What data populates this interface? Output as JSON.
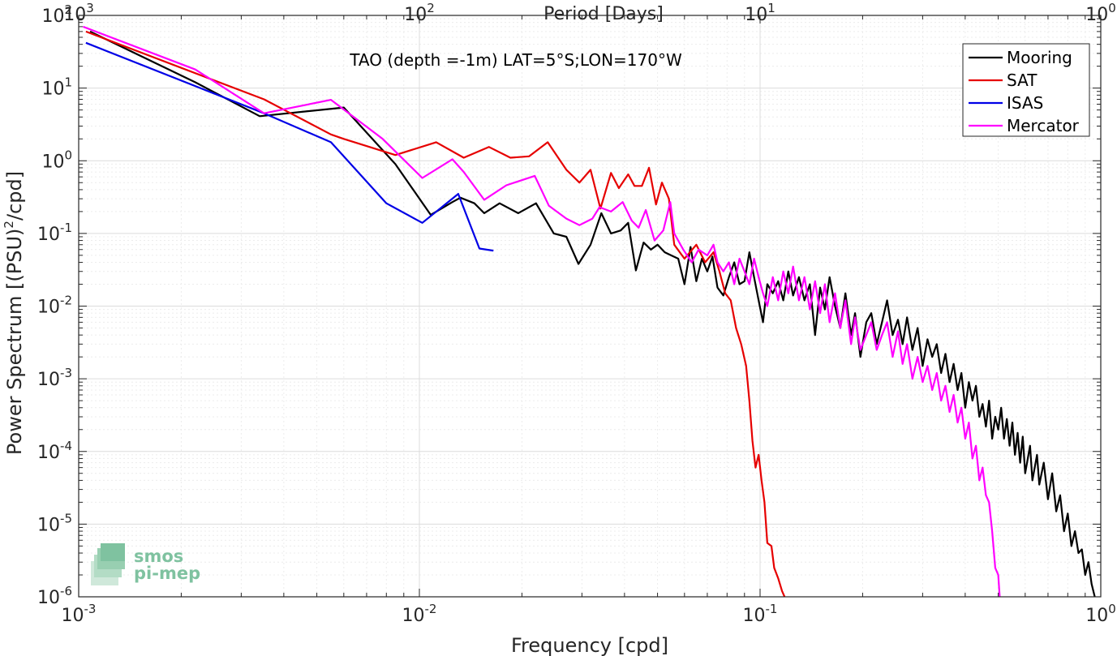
{
  "chart_data": {
    "type": "line",
    "title": "TAO (depth =-1m) LAT=5°S;LON=170°W",
    "xlabel": "Frequency [cpd]",
    "ylabel_main": "Power Spectrum [(PSU)",
    "ylabel_sup": "2",
    "ylabel_tail": "/cpd]",
    "x2label": "Period [Days]",
    "xscale": "log",
    "yscale": "log",
    "xlim": [
      0.001,
      1
    ],
    "ylim": [
      1e-06,
      100
    ],
    "grid": true,
    "legend_position": "top-right",
    "x_ticks": [
      {
        "value": 0.001,
        "base": "10",
        "exp": "-3"
      },
      {
        "value": 0.01,
        "base": "10",
        "exp": "-2"
      },
      {
        "value": 0.1,
        "base": "10",
        "exp": "-1"
      },
      {
        "value": 1,
        "base": "10",
        "exp": "0"
      }
    ],
    "y_ticks": [
      {
        "value": 1e-06,
        "base": "10",
        "exp": "-6"
      },
      {
        "value": 1e-05,
        "base": "10",
        "exp": "-5"
      },
      {
        "value": 0.0001,
        "base": "10",
        "exp": "-4"
      },
      {
        "value": 0.001,
        "base": "10",
        "exp": "-3"
      },
      {
        "value": 0.01,
        "base": "10",
        "exp": "-2"
      },
      {
        "value": 0.1,
        "base": "10",
        "exp": "-1"
      },
      {
        "value": 1,
        "base": "10",
        "exp": "0"
      },
      {
        "value": 10,
        "base": "10",
        "exp": "1"
      },
      {
        "value": 100,
        "base": "10",
        "exp": "2"
      }
    ],
    "x2_ticks": [
      {
        "value": 0.001,
        "base": "10",
        "exp": "3"
      },
      {
        "value": 0.01,
        "base": "10",
        "exp": "2"
      },
      {
        "value": 0.1,
        "base": "10",
        "exp": "1"
      },
      {
        "value": 1,
        "base": "10",
        "exp": "0"
      }
    ],
    "series": [
      {
        "name": "Mooring",
        "color": "#000000",
        "points": [
          [
            0.00108,
            60
          ],
          [
            0.0022,
            12
          ],
          [
            0.0034,
            4.1
          ],
          [
            0.006,
            5.4
          ],
          [
            0.0085,
            0.9
          ],
          [
            0.0108,
            0.18
          ],
          [
            0.0125,
            0.27
          ],
          [
            0.0132,
            0.31
          ],
          [
            0.0145,
            0.26
          ],
          [
            0.0155,
            0.19
          ],
          [
            0.0172,
            0.26
          ],
          [
            0.0195,
            0.19
          ],
          [
            0.022,
            0.26
          ],
          [
            0.0248,
            0.1
          ],
          [
            0.027,
            0.09
          ],
          [
            0.0293,
            0.038
          ],
          [
            0.0318,
            0.07
          ],
          [
            0.0342,
            0.19
          ],
          [
            0.0365,
            0.1
          ],
          [
            0.039,
            0.11
          ],
          [
            0.041,
            0.14
          ],
          [
            0.0432,
            0.031
          ],
          [
            0.0455,
            0.075
          ],
          [
            0.0478,
            0.06
          ],
          [
            0.05,
            0.07
          ],
          [
            0.0525,
            0.055
          ],
          [
            0.0548,
            0.05
          ],
          [
            0.0575,
            0.045
          ],
          [
            0.06,
            0.02
          ],
          [
            0.0625,
            0.065
          ],
          [
            0.065,
            0.022
          ],
          [
            0.0675,
            0.045
          ],
          [
            0.07,
            0.03
          ],
          [
            0.0725,
            0.048
          ],
          [
            0.075,
            0.018
          ],
          [
            0.078,
            0.014
          ],
          [
            0.081,
            0.025
          ],
          [
            0.084,
            0.04
          ],
          [
            0.087,
            0.02
          ],
          [
            0.09,
            0.022
          ],
          [
            0.093,
            0.055
          ],
          [
            0.096,
            0.025
          ],
          [
            0.099,
            0.012
          ],
          [
            0.102,
            0.006
          ],
          [
            0.105,
            0.02
          ],
          [
            0.109,
            0.015
          ],
          [
            0.113,
            0.022
          ],
          [
            0.117,
            0.012
          ],
          [
            0.121,
            0.03
          ],
          [
            0.125,
            0.014
          ],
          [
            0.13,
            0.025
          ],
          [
            0.135,
            0.012
          ],
          [
            0.14,
            0.02
          ],
          [
            0.145,
            0.004
          ],
          [
            0.15,
            0.018
          ],
          [
            0.155,
            0.009
          ],
          [
            0.16,
            0.025
          ],
          [
            0.166,
            0.01
          ],
          [
            0.172,
            0.005
          ],
          [
            0.178,
            0.015
          ],
          [
            0.185,
            0.004
          ],
          [
            0.19,
            0.008
          ],
          [
            0.197,
            0.002
          ],
          [
            0.205,
            0.006
          ],
          [
            0.212,
            0.008
          ],
          [
            0.22,
            0.003
          ],
          [
            0.228,
            0.006
          ],
          [
            0.236,
            0.012
          ],
          [
            0.245,
            0.004
          ],
          [
            0.254,
            0.0065
          ],
          [
            0.262,
            0.003
          ],
          [
            0.27,
            0.007
          ],
          [
            0.28,
            0.0025
          ],
          [
            0.29,
            0.005
          ],
          [
            0.3,
            0.0015
          ],
          [
            0.31,
            0.0035
          ],
          [
            0.32,
            0.002
          ],
          [
            0.33,
            0.003
          ],
          [
            0.34,
            0.0012
          ],
          [
            0.35,
            0.0022
          ],
          [
            0.36,
            0.0009
          ],
          [
            0.37,
            0.0016
          ],
          [
            0.38,
            0.0007
          ],
          [
            0.39,
            0.0012
          ],
          [
            0.4,
            0.0004
          ],
          [
            0.41,
            0.0009
          ],
          [
            0.42,
            0.0005
          ],
          [
            0.43,
            0.0008
          ],
          [
            0.44,
            0.0003
          ],
          [
            0.45,
            0.00045
          ],
          [
            0.46,
            0.00022
          ],
          [
            0.47,
            0.0005
          ],
          [
            0.48,
            0.00015
          ],
          [
            0.49,
            0.0003
          ],
          [
            0.5,
            0.0002
          ],
          [
            0.51,
            0.0004
          ],
          [
            0.52,
            0.00015
          ],
          [
            0.53,
            0.00028
          ],
          [
            0.54,
            0.00012
          ],
          [
            0.55,
            0.00025
          ],
          [
            0.56,
            9e-05
          ],
          [
            0.57,
            0.00018
          ],
          [
            0.58,
            7e-05
          ],
          [
            0.59,
            0.00016
          ],
          [
            0.6,
            5e-05
          ],
          [
            0.62,
            0.00012
          ],
          [
            0.63,
            4e-05
          ],
          [
            0.65,
            9e-05
          ],
          [
            0.66,
            3.5e-05
          ],
          [
            0.68,
            7e-05
          ],
          [
            0.7,
            2.2e-05
          ],
          [
            0.72,
            5e-05
          ],
          [
            0.74,
            1.5e-05
          ],
          [
            0.76,
            2.5e-05
          ],
          [
            0.78,
            8e-06
          ],
          [
            0.8,
            1.4e-05
          ],
          [
            0.82,
            5e-06
          ],
          [
            0.84,
            8e-06
          ],
          [
            0.86,
            4e-06
          ],
          [
            0.88,
            4.5e-06
          ],
          [
            0.9,
            2e-06
          ],
          [
            0.92,
            3e-06
          ],
          [
            0.94,
            1.5e-06
          ],
          [
            0.96,
            1e-06
          ]
        ]
      },
      {
        "name": "SAT",
        "color": "#e60000",
        "points": [
          [
            0.00105,
            60
          ],
          [
            0.0035,
            7
          ],
          [
            0.0055,
            2.3
          ],
          [
            0.006,
            2
          ],
          [
            0.0085,
            1.2
          ],
          [
            0.0112,
            1.8
          ],
          [
            0.0135,
            1.1
          ],
          [
            0.016,
            1.55
          ],
          [
            0.0185,
            1.1
          ],
          [
            0.021,
            1.15
          ],
          [
            0.0238,
            1.8
          ],
          [
            0.027,
            0.75
          ],
          [
            0.0295,
            0.5
          ],
          [
            0.0318,
            0.75
          ],
          [
            0.034,
            0.22
          ],
          [
            0.0365,
            0.68
          ],
          [
            0.0385,
            0.42
          ],
          [
            0.041,
            0.65
          ],
          [
            0.0428,
            0.45
          ],
          [
            0.045,
            0.45
          ],
          [
            0.0472,
            0.8
          ],
          [
            0.0495,
            0.25
          ],
          [
            0.0515,
            0.5
          ],
          [
            0.054,
            0.3
          ],
          [
            0.056,
            0.07
          ],
          [
            0.06,
            0.045
          ],
          [
            0.065,
            0.07
          ],
          [
            0.069,
            0.04
          ],
          [
            0.073,
            0.055
          ],
          [
            0.076,
            0.03
          ],
          [
            0.079,
            0.015
          ],
          [
            0.082,
            0.012
          ],
          [
            0.085,
            0.005
          ],
          [
            0.088,
            0.003
          ],
          [
            0.091,
            0.0015
          ],
          [
            0.093,
            0.0005
          ],
          [
            0.095,
            0.00014
          ],
          [
            0.097,
            6e-05
          ],
          [
            0.099,
            9e-05
          ],
          [
            0.101,
            4e-05
          ],
          [
            0.103,
            2e-05
          ],
          [
            0.105,
            5.5e-06
          ],
          [
            0.108,
            5e-06
          ],
          [
            0.11,
            2.5e-06
          ],
          [
            0.113,
            1.8e-06
          ],
          [
            0.116,
            1.2e-06
          ],
          [
            0.118,
            1e-06
          ]
        ]
      },
      {
        "name": "ISAS",
        "color": "#0000e6",
        "points": [
          [
            0.00105,
            42
          ],
          [
            0.0035,
            4.5
          ],
          [
            0.0055,
            1.8
          ],
          [
            0.008,
            0.26
          ],
          [
            0.0102,
            0.14
          ],
          [
            0.0115,
            0.22
          ],
          [
            0.013,
            0.35
          ],
          [
            0.015,
            0.062
          ],
          [
            0.0165,
            0.058
          ]
        ]
      },
      {
        "name": "Mercator",
        "color": "#ff00ff",
        "points": [
          [
            0.00103,
            70
          ],
          [
            0.0022,
            18
          ],
          [
            0.0035,
            4.5
          ],
          [
            0.0055,
            6.9
          ],
          [
            0.0078,
            2
          ],
          [
            0.0102,
            0.58
          ],
          [
            0.0125,
            1.05
          ],
          [
            0.0135,
            0.7
          ],
          [
            0.0155,
            0.29
          ],
          [
            0.018,
            0.46
          ],
          [
            0.0218,
            0.62
          ],
          [
            0.024,
            0.24
          ],
          [
            0.027,
            0.16
          ],
          [
            0.0295,
            0.13
          ],
          [
            0.0322,
            0.16
          ],
          [
            0.0338,
            0.23
          ],
          [
            0.0365,
            0.2
          ],
          [
            0.0395,
            0.27
          ],
          [
            0.042,
            0.15
          ],
          [
            0.044,
            0.12
          ],
          [
            0.0462,
            0.21
          ],
          [
            0.049,
            0.08
          ],
          [
            0.052,
            0.11
          ],
          [
            0.0545,
            0.27
          ],
          [
            0.056,
            0.1
          ],
          [
            0.0595,
            0.06
          ],
          [
            0.063,
            0.04
          ],
          [
            0.066,
            0.06
          ],
          [
            0.07,
            0.05
          ],
          [
            0.073,
            0.07
          ],
          [
            0.075,
            0.04
          ],
          [
            0.078,
            0.03
          ],
          [
            0.081,
            0.04
          ],
          [
            0.084,
            0.02
          ],
          [
            0.087,
            0.045
          ],
          [
            0.09,
            0.03
          ],
          [
            0.093,
            0.02
          ],
          [
            0.096,
            0.045
          ],
          [
            0.099,
            0.025
          ],
          [
            0.102,
            0.015
          ],
          [
            0.105,
            0.01
          ],
          [
            0.109,
            0.025
          ],
          [
            0.113,
            0.012
          ],
          [
            0.117,
            0.03
          ],
          [
            0.121,
            0.015
          ],
          [
            0.125,
            0.035
          ],
          [
            0.13,
            0.012
          ],
          [
            0.135,
            0.025
          ],
          [
            0.14,
            0.009
          ],
          [
            0.145,
            0.022
          ],
          [
            0.15,
            0.008
          ],
          [
            0.155,
            0.02
          ],
          [
            0.16,
            0.006
          ],
          [
            0.166,
            0.015
          ],
          [
            0.172,
            0.005
          ],
          [
            0.178,
            0.012
          ],
          [
            0.185,
            0.003
          ],
          [
            0.19,
            0.007
          ],
          [
            0.197,
            0.0025
          ],
          [
            0.205,
            0.004
          ],
          [
            0.212,
            0.006
          ],
          [
            0.22,
            0.0025
          ],
          [
            0.228,
            0.004
          ],
          [
            0.236,
            0.006
          ],
          [
            0.245,
            0.002
          ],
          [
            0.254,
            0.0045
          ],
          [
            0.262,
            0.0016
          ],
          [
            0.27,
            0.003
          ],
          [
            0.28,
            0.001
          ],
          [
            0.29,
            0.002
          ],
          [
            0.3,
            0.0009
          ],
          [
            0.31,
            0.0015
          ],
          [
            0.32,
            0.0007
          ],
          [
            0.33,
            0.0012
          ],
          [
            0.34,
            0.0005
          ],
          [
            0.35,
            0.0008
          ],
          [
            0.36,
            0.00035
          ],
          [
            0.37,
            0.0006
          ],
          [
            0.38,
            0.00025
          ],
          [
            0.39,
            0.0004
          ],
          [
            0.4,
            0.00015
          ],
          [
            0.41,
            0.00025
          ],
          [
            0.42,
            8e-05
          ],
          [
            0.43,
            0.00012
          ],
          [
            0.44,
            4e-05
          ],
          [
            0.45,
            6e-05
          ],
          [
            0.46,
            2.5e-05
          ],
          [
            0.47,
            2e-05
          ],
          [
            0.48,
            8e-06
          ],
          [
            0.49,
            2.5e-06
          ],
          [
            0.5,
            2e-06
          ],
          [
            0.505,
            1e-06
          ]
        ]
      }
    ]
  },
  "logo": {
    "line1": "smos",
    "line2": "pi-mep",
    "color": "#7fc2a0"
  }
}
